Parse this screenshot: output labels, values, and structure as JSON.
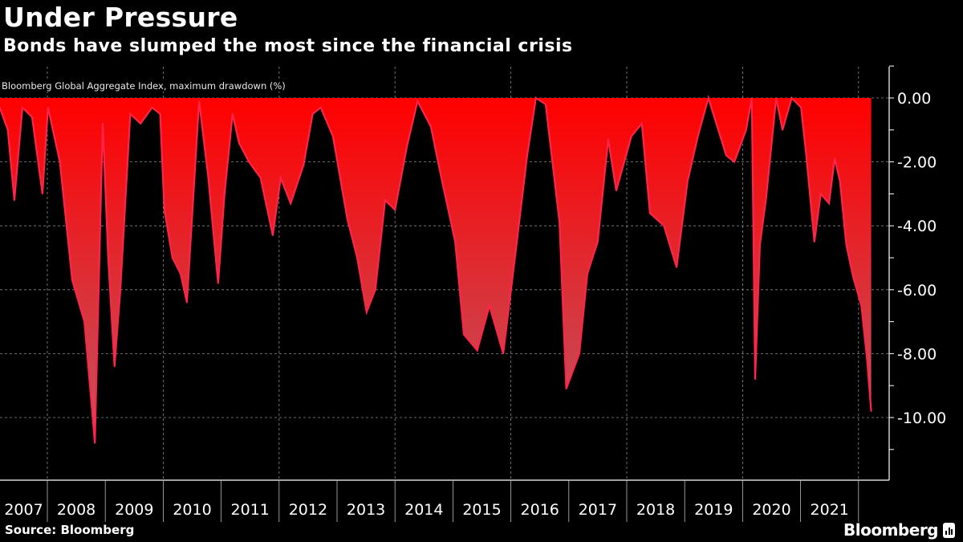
{
  "header": {
    "title": "Under Pressure",
    "subtitle": "Bonds have slumped the most since the financial crisis",
    "note": "Bloomberg Global Aggregate Index, maximum drawdown (%)"
  },
  "footer": {
    "source": "Source: Bloomberg",
    "logo": "Bloomberg"
  },
  "colors": {
    "background": "#000000",
    "fill_top": "#ff0000",
    "fill_bottom": "#c4505c",
    "line": "#ff2448",
    "text": "#ffffff",
    "grid": "#8a8a8a"
  },
  "chart_data": {
    "type": "area",
    "title": "Under Pressure",
    "subtitle": "Bonds have slumped the most since the financial crisis",
    "ylabel": "Bloomberg Global Aggregate Index, maximum drawdown (%)",
    "ylim": [
      -12,
      1
    ],
    "yticks": [
      "0.00",
      "-2.00",
      "-4.00",
      "-6.00",
      "-8.00",
      "-10.00"
    ],
    "ytick_values": [
      0,
      -2,
      -4,
      -6,
      -8,
      -10
    ],
    "y_axis_side": "right",
    "xticks": [
      "2007",
      "2008",
      "2009",
      "2010",
      "2011",
      "2012",
      "2013",
      "2014",
      "2015",
      "2016",
      "2017",
      "2018",
      "2019",
      "2020",
      "2021"
    ],
    "grid": true,
    "legend": "none",
    "series": [
      {
        "x": [
          "2007-03-07",
          "2007-04-27",
          "2007-06-07",
          "2007-07-28",
          "2007-09-27",
          "2007-12-01",
          "2008-01-05",
          "2008-03-20",
          "2008-06-06",
          "2008-08-22",
          "2008-10-27",
          "2008-12-16",
          "2009-01-19",
          "2009-02-28",
          "2009-04-06",
          "2009-06-07",
          "2009-08-11",
          "2009-10-23",
          "2009-12-13",
          "2010-01-08",
          "2010-02-28",
          "2010-04-20",
          "2010-05-30",
          "2010-08-15",
          "2010-10-12",
          "2010-12-13",
          "2011-01-22",
          "2011-03-14",
          "2011-04-23",
          "2011-06-25",
          "2011-09-06",
          "2011-11-22",
          "2012-01-11",
          "2012-03-14",
          "2012-06-03",
          "2012-07-31",
          "2012-09-20",
          "2012-12-06",
          "2013-03-07",
          "2013-05-08",
          "2013-07-06",
          "2013-08-30",
          "2013-10-31",
          "2014-01-01",
          "2014-03-18",
          "2014-05-23",
          "2014-08-15",
          "2014-10-20",
          "2015-01-15",
          "2015-03-11",
          "2015-06-03",
          "2015-08-19",
          "2015-11-14",
          "2016-02-03",
          "2016-04-13",
          "2016-06-07",
          "2016-08-08",
          "2016-11-03",
          "2016-12-16",
          "2017-03-08",
          "2017-04-28",
          "2017-07-02",
          "2017-09-06",
          "2017-10-27",
          "2018-01-30",
          "2018-04-06",
          "2018-05-27",
          "2018-08-23",
          "2018-11-11",
          "2019-01-19",
          "2019-03-25",
          "2019-05-30",
          "2019-09-20",
          "2019-11-10",
          "2020-01-23",
          "2020-02-28",
          "2020-03-20",
          "2020-04-19",
          "2020-05-29",
          "2020-07-31",
          "2020-09-09",
          "2020-11-06",
          "2021-01-04",
          "2021-02-06",
          "2021-03-29",
          "2021-05-08",
          "2021-06-29",
          "2021-08-04",
          "2021-09-06",
          "2021-10-16",
          "2021-11-28",
          "2022-01-19",
          "2022-02-24",
          "2022-03-22"
        ],
        "values": [
          -0.3,
          -1.0,
          -3.2,
          -0.3,
          -0.6,
          -3.0,
          -0.3,
          -2.0,
          -5.7,
          -7.0,
          -10.8,
          -0.8,
          -5.0,
          -8.4,
          -6.0,
          -0.5,
          -0.8,
          -0.3,
          -0.5,
          -3.5,
          -5.0,
          -5.5,
          -6.4,
          -0.1,
          -2.5,
          -5.8,
          -3.0,
          -0.5,
          -1.4,
          -2.0,
          -2.5,
          -4.3,
          -2.5,
          -3.3,
          -2.1,
          -0.5,
          -0.3,
          -1.2,
          -3.8,
          -5.0,
          -6.7,
          -6.0,
          -3.2,
          -3.5,
          -1.5,
          -0.1,
          -0.9,
          -2.5,
          -4.5,
          -7.4,
          -7.9,
          -6.5,
          -8.0,
          -4.7,
          -1.8,
          0,
          -0.2,
          -3.9,
          -9.1,
          -8.0,
          -5.5,
          -4.5,
          -1.3,
          -2.9,
          -1.2,
          -0.8,
          -3.6,
          -4.0,
          -5.3,
          -2.6,
          -1.2,
          0,
          -1.8,
          -2.0,
          -1.0,
          0,
          -8.8,
          -4.6,
          -3.1,
          0,
          -1.0,
          0,
          -0.3,
          -1.8,
          -4.5,
          -3.0,
          -3.3,
          -1.9,
          -2.6,
          -4.6,
          -5.6,
          -6.5,
          -8.2,
          -9.8
        ]
      }
    ]
  }
}
